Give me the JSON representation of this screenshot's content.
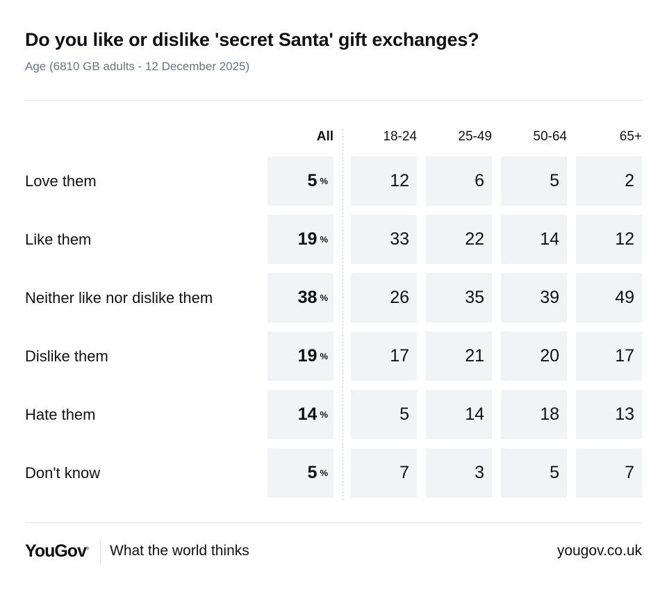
{
  "header": {
    "title": "Do you like or dislike 'secret Santa' gift exchanges?",
    "subtitle": "Age (6810 GB adults - 12 December 2025)"
  },
  "chart_data": {
    "type": "table",
    "title": "Do you like or dislike 'secret Santa' gift exchanges?",
    "columns": [
      "All",
      "18-24",
      "25-49",
      "50-64",
      "65+"
    ],
    "unit": "%",
    "rows": [
      {
        "label": "Love them",
        "values": [
          5,
          12,
          6,
          5,
          2
        ]
      },
      {
        "label": "Like them",
        "values": [
          19,
          33,
          22,
          14,
          12
        ]
      },
      {
        "label": "Neither like nor dislike them",
        "values": [
          38,
          26,
          35,
          39,
          49
        ]
      },
      {
        "label": "Dislike them",
        "values": [
          19,
          17,
          21,
          20,
          17
        ]
      },
      {
        "label": "Hate them",
        "values": [
          14,
          5,
          14,
          18,
          13
        ]
      },
      {
        "label": "Don't know",
        "values": [
          5,
          7,
          3,
          5,
          7
        ]
      }
    ]
  },
  "footer": {
    "logo": "YouGov",
    "tagline": "What the world thinks",
    "url": "yougov.co.uk"
  },
  "colors": {
    "cell_bg": "#f2f3f5",
    "subtitle": "#6b7385"
  }
}
